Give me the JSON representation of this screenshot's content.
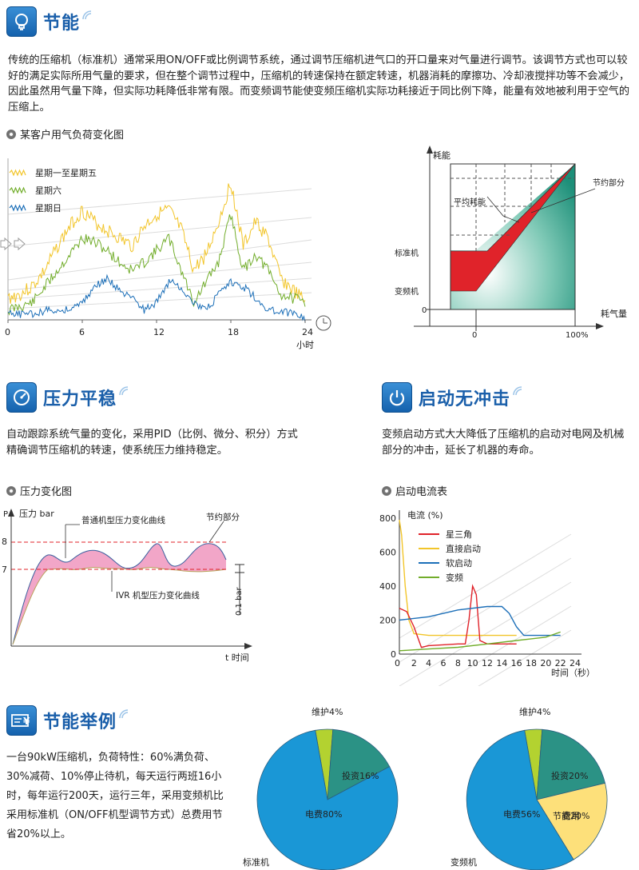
{
  "sections": {
    "energy": {
      "title": "节能",
      "paragraph": "传统的压缩机（标准机）通常采用ON/OFF或比例调节系统，通过调节压缩机进气口的开口量来对气量进行调节。该调节方式也可以较好的满足实际所用气量的要求，但在整个调节过程中，压缩机的转速保持在额定转速，机器消耗的摩擦功、冷却液搅拌功等不会减少，因此虽然用气量下降，但实际功耗降低非常有限。而变频调节能使变频压缩机实际功耗接近于同比例下降，能量有效地被利用于空气的压缩上。",
      "chart_title": "某客户用气负荷变化图"
    },
    "pressure": {
      "title": "压力平稳",
      "paragraph": "自动跟踪系统气量的变化，采用PID（比例、微分、积分）方式精确调节压缩机的转速，使系统压力维持稳定。",
      "chart_title": "压力变化图"
    },
    "startup": {
      "title": "启动无冲击",
      "paragraph": "变频启动方式大大降低了压缩机的启动对电网及机械部分的冲击，延长了机器的寿命。",
      "chart_title": "启动电流表"
    },
    "example": {
      "title": "节能举例",
      "paragraph": "一台90kW压缩机，负荷特性：60%满负荷、30%减荷、10%停止待机，每天运行两班16小时，每年运行200天，运行三年，采用变频机比采用标准机（ON/OFF机型调节方式）总费用节省20%以上。"
    }
  },
  "colors": {
    "blue_title": "#1a5faa",
    "yellow": "#f2c52a",
    "green": "#72ad2b",
    "blue": "#1c6fb8",
    "red": "#e0232a",
    "teal": "#2e9880",
    "pink": "#f2a6c8",
    "pie_blue": "#1a97d6",
    "pie_green": "#b3d230",
    "pie_teal": "#2b9285",
    "pie_yellow": "#fde07a"
  },
  "chart_data": [
    {
      "type": "line",
      "id": "load_chart",
      "series": [
        {
          "name": "星期一至星期五",
          "color": "#f2c52a"
        },
        {
          "name": "星期六",
          "color": "#72ad2b"
        },
        {
          "name": "星期日",
          "color": "#1c6fb8"
        }
      ],
      "x_ticks": [
        "0",
        "6",
        "12",
        "18",
        "24"
      ],
      "xlabel": "小时",
      "xlim": [
        0,
        24
      ]
    },
    {
      "type": "area",
      "id": "power_chart",
      "ylabel": "耗能",
      "xlabel": "耗气量",
      "y_labels": [
        "标准机",
        "变频机",
        "0"
      ],
      "x_ticks": [
        "0",
        "100%"
      ],
      "annotations": [
        "平均耗能",
        "节约部分"
      ]
    },
    {
      "type": "line",
      "id": "pressure_chart",
      "ylabel": "压力 bar",
      "axis_letter": "P",
      "xlabel": "t 时间",
      "y_ticks": [
        "8",
        "7"
      ],
      "annotations": [
        "普通机型压力变化曲线",
        "节约部分",
        "IVR 机型压力变化曲线",
        "0.1 bar"
      ]
    },
    {
      "type": "line",
      "id": "startup_chart",
      "ylabel": "电流 (%)",
      "xlabel": "时间（秒）",
      "y_ticks": [
        0,
        200,
        400,
        600,
        800
      ],
      "x_ticks": [
        2,
        4,
        6,
        8,
        10,
        12,
        14,
        16,
        18,
        20,
        22,
        24
      ],
      "x_zero": "0",
      "ylim": [
        0,
        800
      ],
      "xlim": [
        0,
        24
      ],
      "series": [
        {
          "name": "星三角",
          "color": "#e0232a"
        },
        {
          "name": "直接启动",
          "color": "#f2c52a"
        },
        {
          "name": "软启动",
          "color": "#1c6fb8"
        },
        {
          "name": "变频",
          "color": "#72ad2b"
        }
      ]
    },
    {
      "type": "pie",
      "id": "pie_standard",
      "label": "标准机",
      "slices": [
        {
          "name": "电费80%",
          "value": 80,
          "color": "#1a97d6"
        },
        {
          "name": "维护4%",
          "value": 4,
          "color": "#b3d230"
        },
        {
          "name": "投资16%",
          "value": 16,
          "color": "#2b9285"
        }
      ]
    },
    {
      "type": "pie",
      "id": "pie_vfd",
      "label": "变频机",
      "slices": [
        {
          "name": "电费56%",
          "value": 56,
          "color": "#1a97d6"
        },
        {
          "name": "维护4%",
          "value": 4,
          "color": "#b3d230"
        },
        {
          "name": "投资20%",
          "value": 20,
          "color": "#2b9285"
        },
        {
          "name": "节能20%",
          "value": 20,
          "color": "#fde07a"
        }
      ],
      "overlap_label": "费用"
    }
  ]
}
